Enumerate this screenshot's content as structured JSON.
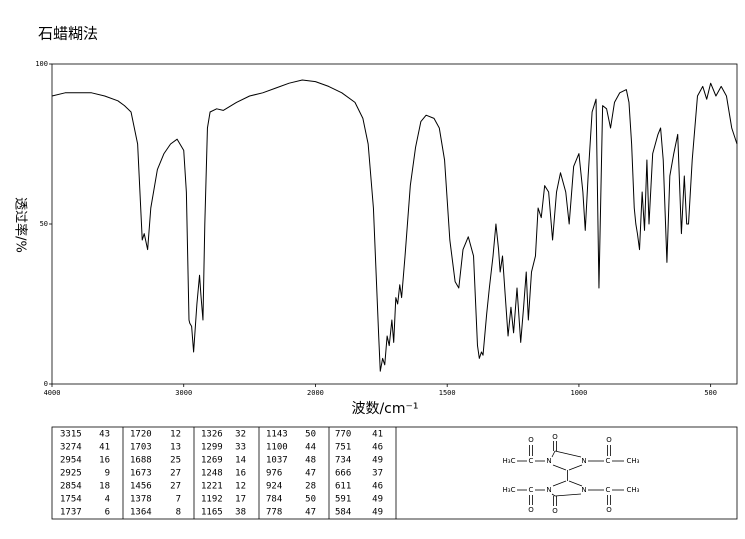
{
  "chart_data": {
    "type": "line",
    "title": "石蜡糊法",
    "x_label": "波数/cm⁻¹",
    "y_label": "透过率/%",
    "xlim": [
      4000,
      400
    ],
    "x_scale_break": 2000,
    "x_scale_break_ratio": 2,
    "xticks": [
      4000,
      3000,
      2000,
      1500,
      1000,
      500
    ],
    "ylim": [
      0,
      100
    ],
    "yticks": [
      0,
      50,
      100
    ],
    "grid": false,
    "color": "#000000",
    "x": [
      4000,
      3900,
      3700,
      3600,
      3500,
      3450,
      3400,
      3350,
      3315,
      3300,
      3274,
      3250,
      3200,
      3150,
      3100,
      3050,
      3000,
      2980,
      2960,
      2954,
      2940,
      2925,
      2900,
      2880,
      2870,
      2854,
      2840,
      2820,
      2800,
      2750,
      2700,
      2600,
      2500,
      2400,
      2300,
      2200,
      2100,
      2000,
      1950,
      1900,
      1850,
      1820,
      1800,
      1780,
      1760,
      1754,
      1745,
      1737,
      1728,
      1720,
      1710,
      1703,
      1695,
      1688,
      1680,
      1673,
      1660,
      1640,
      1620,
      1600,
      1580,
      1550,
      1530,
      1510,
      1490,
      1470,
      1456,
      1440,
      1420,
      1400,
      1385,
      1378,
      1370,
      1364,
      1350,
      1340,
      1326,
      1315,
      1305,
      1299,
      1290,
      1280,
      1269,
      1258,
      1248,
      1235,
      1221,
      1210,
      1200,
      1192,
      1180,
      1165,
      1155,
      1143,
      1130,
      1115,
      1100,
      1085,
      1070,
      1050,
      1037,
      1020,
      1000,
      985,
      976,
      965,
      950,
      935,
      924,
      910,
      895,
      880,
      865,
      845,
      820,
      810,
      800,
      790,
      784,
      778,
      770,
      760,
      751,
      742,
      734,
      720,
      700,
      690,
      680,
      666,
      655,
      640,
      625,
      611,
      600,
      591,
      584,
      570,
      550,
      530,
      515,
      500,
      480,
      460,
      440,
      420,
      400
    ],
    "values": [
      90,
      91,
      91,
      90,
      88.5,
      87,
      85,
      75,
      45,
      47,
      42,
      55,
      67,
      72,
      75,
      76.5,
      73,
      60,
      20,
      19,
      18,
      10,
      25,
      34,
      28,
      20,
      50,
      80,
      85,
      86,
      85.5,
      88,
      90,
      91,
      92.5,
      94,
      95,
      94.5,
      93,
      91,
      88,
      83,
      75,
      55,
      15,
      4,
      8,
      6,
      15,
      12,
      20,
      13,
      27,
      25,
      31,
      27,
      40,
      62,
      74,
      82,
      84,
      83,
      80,
      70,
      45,
      32,
      30,
      42,
      46,
      40,
      12,
      8,
      10,
      9,
      22,
      30,
      40,
      50,
      42,
      35,
      40,
      28,
      15,
      24,
      16,
      30,
      13,
      24,
      35,
      20,
      35,
      40,
      55,
      52,
      62,
      60,
      45,
      60,
      66,
      60,
      50,
      68,
      72,
      60,
      48,
      65,
      85,
      89,
      30,
      87,
      86,
      80,
      88,
      91,
      92,
      88,
      75,
      55,
      50,
      47,
      42,
      60,
      48,
      70,
      50,
      72,
      78,
      80,
      70,
      38,
      65,
      72,
      78,
      47,
      65,
      50,
      50,
      70,
      90,
      93,
      89,
      94,
      90,
      93,
      90,
      80,
      75
    ]
  },
  "peak_table": [
    {
      "wavenumbers": [
        3315,
        3274,
        2954,
        2925,
        2854,
        1754,
        1737
      ],
      "transmittance": [
        43,
        41,
        16,
        9,
        18,
        4,
        6
      ]
    },
    {
      "wavenumbers": [
        1720,
        1703,
        1688,
        1673,
        1456,
        1378,
        1364
      ],
      "transmittance": [
        12,
        13,
        25,
        27,
        27,
        7,
        8
      ]
    },
    {
      "wavenumbers": [
        1326,
        1299,
        1269,
        1248,
        1221,
        1192,
        1165
      ],
      "transmittance": [
        32,
        33,
        14,
        16,
        12,
        17,
        38
      ]
    },
    {
      "wavenumbers": [
        1143,
        1100,
        1037,
        976,
        924,
        784,
        778
      ],
      "transmittance": [
        50,
        44,
        48,
        47,
        28,
        50,
        47
      ]
    },
    {
      "wavenumbers": [
        770,
        751,
        734,
        666,
        611,
        591,
        584
      ],
      "transmittance": [
        41,
        46,
        49,
        37,
        46,
        49,
        49
      ]
    }
  ],
  "structure": {
    "labels": [
      "O",
      "O",
      "O",
      "H₃C",
      "C",
      "N",
      "N",
      "C",
      "CH₃",
      "H₃C",
      "C",
      "N",
      "N",
      "C",
      "CH₃",
      "O",
      "O",
      "O"
    ]
  }
}
